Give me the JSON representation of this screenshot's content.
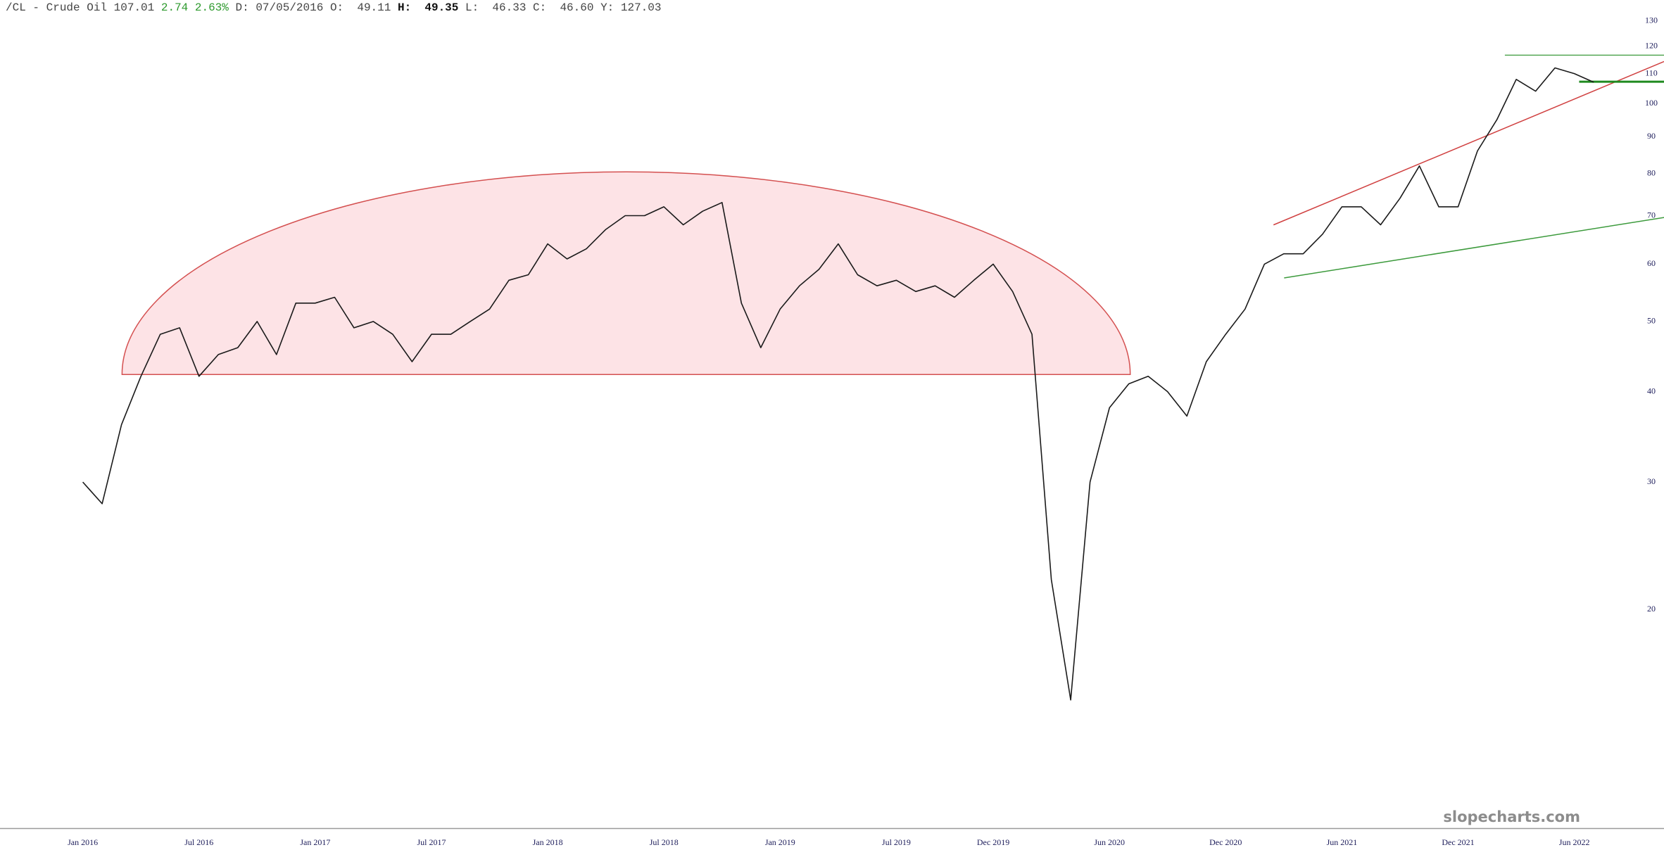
{
  "header": {
    "symbol": "/CL - Crude Oil",
    "last": "107.01",
    "change": "2.74",
    "change_pct": "2.63%",
    "date_label": "D:",
    "date": "07/05/2016",
    "open_label": "O:",
    "open": "49.11",
    "high_label": "H:",
    "high": "49.35",
    "low_label": "L:",
    "low": "46.33",
    "close_label": "C:",
    "close": "46.60",
    "y_label": "Y:",
    "y": "127.03"
  },
  "watermark": "slopecharts.com",
  "chart_data": {
    "type": "line",
    "log_y": true,
    "grid": false,
    "color": "#1a1a1a",
    "categories": [
      "Jan 2016",
      null,
      null,
      null,
      null,
      null,
      "Jul 2016",
      null,
      null,
      null,
      null,
      null,
      "Jan 2017",
      null,
      null,
      null,
      null,
      null,
      "Jul 2017",
      null,
      null,
      null,
      null,
      null,
      "Jan 2018",
      null,
      null,
      null,
      null,
      null,
      "Jul 2018",
      null,
      null,
      null,
      null,
      null,
      "Jan 2019",
      null,
      null,
      null,
      null,
      null,
      "Jul 2019",
      null,
      null,
      null,
      null,
      "Dec 2019",
      null,
      null,
      null,
      null,
      null,
      "Jun 2020",
      null,
      null,
      null,
      null,
      null,
      "Dec 2020",
      null,
      null,
      null,
      null,
      null,
      "Jun 2021",
      null,
      null,
      null,
      null,
      null,
      "Dec 2021",
      null,
      null,
      null,
      null,
      null,
      "Jun 2022",
      null
    ],
    "values": [
      30,
      28,
      36,
      42,
      48,
      49,
      42,
      45,
      46,
      50,
      45,
      53,
      53,
      54,
      49,
      50,
      48,
      44,
      48,
      48,
      50,
      52,
      57,
      58,
      64,
      61,
      63,
      67,
      70,
      70,
      72,
      68,
      71,
      73,
      53,
      46,
      52,
      56,
      59,
      64,
      58,
      56,
      57,
      55,
      56,
      54,
      57,
      60,
      55,
      48,
      22,
      15,
      30,
      38,
      41,
      42,
      40,
      37,
      44,
      48,
      52,
      60,
      62,
      62,
      66,
      72,
      72,
      68,
      74,
      82,
      72,
      72,
      86,
      95,
      108,
      104,
      112,
      110,
      107
    ],
    "ylim": [
      10,
      139
    ],
    "yticks": [
      20,
      30,
      40,
      50,
      60,
      70,
      80,
      90,
      100,
      110,
      120,
      130
    ]
  }
}
